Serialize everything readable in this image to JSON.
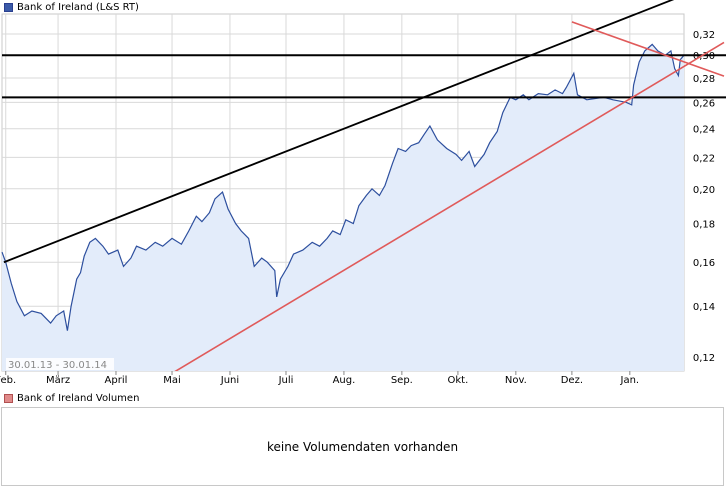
{
  "legend": {
    "price_label": "Bank of Ireland (L&S RT)",
    "volume_label": "Bank of Ireland Volumen"
  },
  "volume": {
    "empty_message": "keine Volumendaten vorhanden"
  },
  "colors": {
    "line": "#2d4f9e",
    "area": "#e3ecfa",
    "grid": "#d9d9d9",
    "support": "#000000",
    "trend": "#e05a5a"
  },
  "chart_data": {
    "type": "line",
    "title": "Bank of Ireland (L&S RT)",
    "period_label": "30.01.13 - 30.01.14",
    "y_scale": "log",
    "ylim": [
      0.115,
      0.34
    ],
    "y_ticks": [
      0.12,
      0.14,
      0.16,
      0.18,
      0.2,
      0.22,
      0.24,
      0.26,
      0.28,
      0.3,
      0.32
    ],
    "y_tick_labels": [
      "0,12",
      "0,14",
      "0,16",
      "0,18",
      "0,20",
      "0,22",
      "0,24",
      "0,26",
      "0,28",
      "0,30",
      "0,32"
    ],
    "x_range": [
      "2013-01-30",
      "2014-01-30"
    ],
    "x_ticks": [
      {
        "date": "2013-02-01",
        "label": "Feb."
      },
      {
        "date": "2013-03-01",
        "label": "März"
      },
      {
        "date": "2013-04-01",
        "label": "April"
      },
      {
        "date": "2013-05-01",
        "label": "Mai"
      },
      {
        "date": "2013-06-01",
        "label": "Juni"
      },
      {
        "date": "2013-07-01",
        "label": "Juli"
      },
      {
        "date": "2013-08-01",
        "label": "Aug."
      },
      {
        "date": "2013-09-01",
        "label": "Sep."
      },
      {
        "date": "2013-10-01",
        "label": "Okt."
      },
      {
        "date": "2013-11-01",
        "label": "Nov."
      },
      {
        "date": "2013-12-01",
        "label": "Dez."
      },
      {
        "date": "2014-01-01",
        "label": "Jan."
      }
    ],
    "grid": true,
    "series": [
      {
        "name": "Bank of Ireland (L&S RT)",
        "points": [
          [
            "2013-01-30",
            0.165
          ],
          [
            "2013-02-01",
            0.16
          ],
          [
            "2013-02-04",
            0.15
          ],
          [
            "2013-02-07",
            0.142
          ],
          [
            "2013-02-11",
            0.136
          ],
          [
            "2013-02-15",
            0.138
          ],
          [
            "2013-02-20",
            0.137
          ],
          [
            "2013-02-25",
            0.133
          ],
          [
            "2013-02-28",
            0.136
          ],
          [
            "2013-03-04",
            0.138
          ],
          [
            "2013-03-06",
            0.13
          ],
          [
            "2013-03-08",
            0.14
          ],
          [
            "2013-03-11",
            0.152
          ],
          [
            "2013-03-13",
            0.155
          ],
          [
            "2013-03-15",
            0.163
          ],
          [
            "2013-03-18",
            0.17
          ],
          [
            "2013-03-21",
            0.172
          ],
          [
            "2013-03-25",
            0.168
          ],
          [
            "2013-03-28",
            0.164
          ],
          [
            "2013-04-02",
            0.166
          ],
          [
            "2013-04-05",
            0.158
          ],
          [
            "2013-04-09",
            0.162
          ],
          [
            "2013-04-12",
            0.168
          ],
          [
            "2013-04-17",
            0.166
          ],
          [
            "2013-04-22",
            0.17
          ],
          [
            "2013-04-26",
            0.168
          ],
          [
            "2013-05-01",
            0.172
          ],
          [
            "2013-05-06",
            0.169
          ],
          [
            "2013-05-10",
            0.176
          ],
          [
            "2013-05-14",
            0.184
          ],
          [
            "2013-05-17",
            0.181
          ],
          [
            "2013-05-21",
            0.186
          ],
          [
            "2013-05-24",
            0.194
          ],
          [
            "2013-05-28",
            0.198
          ],
          [
            "2013-05-31",
            0.188
          ],
          [
            "2013-06-04",
            0.18
          ],
          [
            "2013-06-07",
            0.176
          ],
          [
            "2013-06-11",
            0.172
          ],
          [
            "2013-06-14",
            0.158
          ],
          [
            "2013-06-18",
            0.162
          ],
          [
            "2013-06-21",
            0.16
          ],
          [
            "2013-06-25",
            0.156
          ],
          [
            "2013-06-26",
            0.144
          ],
          [
            "2013-06-28",
            0.152
          ],
          [
            "2013-07-02",
            0.158
          ],
          [
            "2013-07-05",
            0.164
          ],
          [
            "2013-07-10",
            0.166
          ],
          [
            "2013-07-15",
            0.17
          ],
          [
            "2013-07-19",
            0.168
          ],
          [
            "2013-07-23",
            0.172
          ],
          [
            "2013-07-26",
            0.176
          ],
          [
            "2013-07-30",
            0.174
          ],
          [
            "2013-08-02",
            0.182
          ],
          [
            "2013-08-06",
            0.18
          ],
          [
            "2013-08-09",
            0.19
          ],
          [
            "2013-08-13",
            0.196
          ],
          [
            "2013-08-16",
            0.2
          ],
          [
            "2013-08-20",
            0.196
          ],
          [
            "2013-08-23",
            0.202
          ],
          [
            "2013-08-27",
            0.216
          ],
          [
            "2013-08-30",
            0.226
          ],
          [
            "2013-09-03",
            0.224
          ],
          [
            "2013-09-06",
            0.228
          ],
          [
            "2013-09-10",
            0.23
          ],
          [
            "2013-09-13",
            0.236
          ],
          [
            "2013-09-16",
            0.242
          ],
          [
            "2013-09-20",
            0.232
          ],
          [
            "2013-09-25",
            0.226
          ],
          [
            "2013-09-30",
            0.222
          ],
          [
            "2013-10-03",
            0.218
          ],
          [
            "2013-10-07",
            0.224
          ],
          [
            "2013-10-10",
            0.214
          ],
          [
            "2013-10-15",
            0.222
          ],
          [
            "2013-10-18",
            0.23
          ],
          [
            "2013-10-22",
            0.238
          ],
          [
            "2013-10-25",
            0.252
          ],
          [
            "2013-10-29",
            0.264
          ],
          [
            "2013-11-01",
            0.262
          ],
          [
            "2013-11-05",
            0.266
          ],
          [
            "2013-11-08",
            0.262
          ],
          [
            "2013-11-13",
            0.267
          ],
          [
            "2013-11-18",
            0.266
          ],
          [
            "2013-11-22",
            0.27
          ],
          [
            "2013-11-26",
            0.267
          ],
          [
            "2013-11-28",
            0.272
          ],
          [
            "2013-12-02",
            0.284
          ],
          [
            "2013-12-04",
            0.266
          ],
          [
            "2013-12-09",
            0.262
          ],
          [
            "2013-12-13",
            0.263
          ],
          [
            "2013-12-18",
            0.264
          ],
          [
            "2013-12-23",
            0.262
          ],
          [
            "2013-12-30",
            0.26
          ],
          [
            "2014-01-02",
            0.258
          ],
          [
            "2014-01-03",
            0.274
          ],
          [
            "2014-01-06",
            0.294
          ],
          [
            "2014-01-09",
            0.304
          ],
          [
            "2014-01-13",
            0.31
          ],
          [
            "2014-01-16",
            0.304
          ],
          [
            "2014-01-20",
            0.3
          ],
          [
            "2014-01-23",
            0.304
          ],
          [
            "2014-01-25",
            0.288
          ],
          [
            "2014-01-27",
            0.282
          ],
          [
            "2014-01-28",
            0.296
          ],
          [
            "2014-01-30",
            0.3
          ]
        ]
      }
    ],
    "horizontal_lines": [
      0.3,
      0.264
    ],
    "trendlines": [
      {
        "name": "upper-trend",
        "color": "#000000",
        "from": [
          "2013-01-31",
          0.16
        ],
        "to": [
          "2014-01-30",
          0.36
        ]
      },
      {
        "name": "lower-trend",
        "color": "#e05a5a",
        "from": [
          "2013-04-20",
          0.11
        ],
        "to": [
          "2014-01-30",
          0.29
        ]
      },
      {
        "name": "resistance-trend",
        "color": "#e05a5a",
        "from": [
          "2013-12-01",
          0.332
        ],
        "to": [
          "2014-01-30",
          0.294
        ]
      }
    ]
  }
}
